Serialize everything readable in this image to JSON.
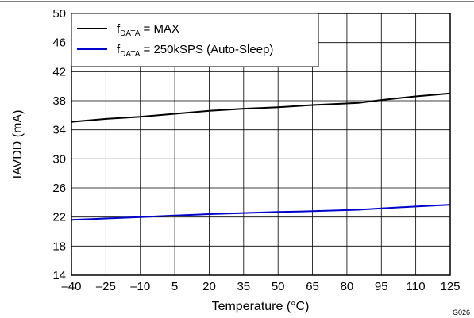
{
  "chart_data": {
    "type": "line",
    "xlabel": "Temperature (°C)",
    "ylabel": "IAVDD (mA)",
    "xlim": [
      -40,
      125
    ],
    "ylim": [
      14,
      50
    ],
    "xticks": [
      -40,
      -25,
      -10,
      5,
      20,
      35,
      50,
      65,
      80,
      95,
      110,
      125
    ],
    "xtick_labels": [
      "–40",
      "–25",
      "–10",
      "5",
      "20",
      "35",
      "50",
      "65",
      "80",
      "95",
      "110",
      "125"
    ],
    "yticks": [
      14,
      18,
      22,
      26,
      30,
      34,
      38,
      42,
      46,
      50
    ],
    "ytick_labels": [
      "14",
      "18",
      "22",
      "26",
      "30",
      "34",
      "38",
      "42",
      "46",
      "50"
    ],
    "grid": true,
    "legend_position": "top-left",
    "series": [
      {
        "name_main": "f",
        "name_sub": "DATA",
        "name_rest": " = MAX",
        "color": "#000000",
        "x": [
          -40,
          -25,
          -10,
          5,
          20,
          35,
          50,
          65,
          85,
          95,
          110,
          125
        ],
        "y": [
          35.1,
          35.5,
          35.8,
          36.2,
          36.6,
          36.9,
          37.1,
          37.4,
          37.7,
          38.1,
          38.6,
          39.0
        ]
      },
      {
        "name_main": "f",
        "name_sub": "DATA",
        "name_rest": " = 250kSPS (Auto-Sleep)",
        "color": "#0000cc",
        "x": [
          -40,
          -25,
          -10,
          5,
          20,
          35,
          50,
          65,
          85,
          95,
          110,
          125
        ],
        "y": [
          21.6,
          21.8,
          22.0,
          22.2,
          22.4,
          22.55,
          22.7,
          22.8,
          23.0,
          23.2,
          23.45,
          23.7
        ]
      }
    ],
    "figure_id": "G026"
  }
}
